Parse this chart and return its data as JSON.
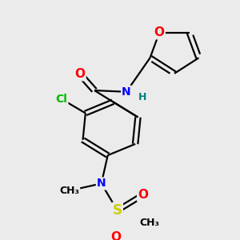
{
  "background_color": "#ebebeb",
  "bond_color": "#000000",
  "atom_colors": {
    "O": "#ff0000",
    "N": "#0000ff",
    "Cl": "#00bb00",
    "S": "#cccc00",
    "C": "#000000",
    "H": "#008080"
  },
  "figsize": [
    3.0,
    3.0
  ],
  "dpi": 100
}
